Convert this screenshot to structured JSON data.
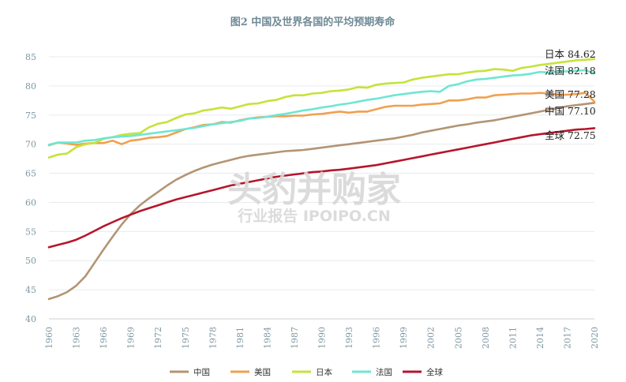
{
  "chart_data": {
    "type": "line",
    "title": "图2 中国及世界各国的平均预期寿命",
    "xlabel": "",
    "ylabel": "",
    "x": [
      1960,
      1961,
      1962,
      1963,
      1964,
      1965,
      1966,
      1967,
      1968,
      1969,
      1970,
      1971,
      1972,
      1973,
      1974,
      1975,
      1976,
      1977,
      1978,
      1979,
      1980,
      1981,
      1982,
      1983,
      1984,
      1985,
      1986,
      1987,
      1988,
      1989,
      1990,
      1991,
      1992,
      1993,
      1994,
      1995,
      1996,
      1997,
      1998,
      1999,
      2000,
      2001,
      2002,
      2003,
      2004,
      2005,
      2006,
      2007,
      2008,
      2009,
      2010,
      2011,
      2012,
      2013,
      2014,
      2015,
      2016,
      2017,
      2018,
      2019,
      2020
    ],
    "x_ticks": [
      "1960",
      "1963",
      "1966",
      "1969",
      "1972",
      "1975",
      "1978",
      "1981",
      "1984",
      "1987",
      "1990",
      "1993",
      "1996",
      "1999",
      "2002",
      "2005",
      "2008",
      "2011",
      "2014",
      "2017",
      "2020"
    ],
    "y_ticks": [
      "40",
      "45",
      "50",
      "55",
      "60",
      "65",
      "70",
      "75",
      "80",
      "85"
    ],
    "ylim": [
      40,
      85
    ],
    "xlim": [
      1960,
      2020
    ],
    "grid": "horizontal",
    "legend_position": "bottom",
    "series": [
      {
        "name": "中国",
        "color": "#b39474",
        "end_label": "中国 77.10",
        "values": [
          43.4,
          43.9,
          44.6,
          45.7,
          47.3,
          49.6,
          51.9,
          54.1,
          56.2,
          58.0,
          59.5,
          60.7,
          61.8,
          62.9,
          63.9,
          64.7,
          65.4,
          66.0,
          66.5,
          66.9,
          67.3,
          67.7,
          68.0,
          68.2,
          68.4,
          68.6,
          68.8,
          68.9,
          69.0,
          69.2,
          69.4,
          69.6,
          69.8,
          70.0,
          70.2,
          70.4,
          70.6,
          70.8,
          71.0,
          71.3,
          71.6,
          72.0,
          72.3,
          72.6,
          72.9,
          73.2,
          73.4,
          73.7,
          73.9,
          74.1,
          74.4,
          74.7,
          75.0,
          75.3,
          75.6,
          75.9,
          76.2,
          76.5,
          76.7,
          76.9,
          77.1
        ]
      },
      {
        "name": "美国",
        "color": "#f0a050",
        "end_label": "美国 77.28",
        "values": [
          69.8,
          70.3,
          70.1,
          69.9,
          70.1,
          70.2,
          70.2,
          70.6,
          70.0,
          70.6,
          70.8,
          71.1,
          71.2,
          71.4,
          72.0,
          72.6,
          72.9,
          73.3,
          73.4,
          73.8,
          73.7,
          74.1,
          74.4,
          74.6,
          74.7,
          74.8,
          74.8,
          74.9,
          74.9,
          75.1,
          75.2,
          75.4,
          75.6,
          75.4,
          75.6,
          75.6,
          76.0,
          76.4,
          76.6,
          76.6,
          76.6,
          76.8,
          76.9,
          77.0,
          77.5,
          77.5,
          77.7,
          78.0,
          78.0,
          78.4,
          78.5,
          78.6,
          78.7,
          78.7,
          78.8,
          78.7,
          78.5,
          78.5,
          78.6,
          78.8,
          77.3
        ]
      },
      {
        "name": "日本",
        "color": "#c5e33a",
        "end_label": "日本 84.62",
        "values": [
          67.7,
          68.2,
          68.4,
          69.5,
          70.0,
          70.2,
          70.9,
          71.2,
          71.6,
          71.8,
          71.9,
          72.9,
          73.5,
          73.8,
          74.5,
          75.1,
          75.3,
          75.8,
          76.0,
          76.3,
          76.1,
          76.5,
          76.9,
          77.0,
          77.4,
          77.6,
          78.1,
          78.4,
          78.4,
          78.7,
          78.8,
          79.1,
          79.2,
          79.4,
          79.8,
          79.7,
          80.2,
          80.4,
          80.5,
          80.6,
          81.1,
          81.4,
          81.6,
          81.8,
          82.0,
          82.0,
          82.3,
          82.5,
          82.6,
          82.9,
          82.8,
          82.6,
          83.1,
          83.3,
          83.6,
          83.8,
          84.0,
          84.2,
          84.4,
          84.5,
          84.62
        ]
      },
      {
        "name": "法国",
        "color": "#6fe6d2",
        "end_label": "法国 82.18",
        "values": [
          69.9,
          70.3,
          70.3,
          70.3,
          70.6,
          70.7,
          71.0,
          71.2,
          71.3,
          71.4,
          71.6,
          71.8,
          72.0,
          72.2,
          72.4,
          72.6,
          72.8,
          73.1,
          73.4,
          73.6,
          73.8,
          74.0,
          74.4,
          74.5,
          74.7,
          75.0,
          75.2,
          75.5,
          75.8,
          76.0,
          76.3,
          76.5,
          76.8,
          77.0,
          77.3,
          77.6,
          77.8,
          78.1,
          78.4,
          78.6,
          78.8,
          79.0,
          79.1,
          79.0,
          80.0,
          80.3,
          80.8,
          81.1,
          81.2,
          81.4,
          81.6,
          81.8,
          81.9,
          82.1,
          82.4,
          82.3,
          82.5,
          82.5,
          82.6,
          82.7,
          82.18
        ]
      },
      {
        "name": "全球",
        "color": "#b5162c",
        "end_label": "全球 72.75",
        "values": [
          52.3,
          52.7,
          53.1,
          53.6,
          54.3,
          55.1,
          55.9,
          56.6,
          57.3,
          57.9,
          58.5,
          59.0,
          59.5,
          60.0,
          60.5,
          60.9,
          61.3,
          61.7,
          62.1,
          62.5,
          62.9,
          63.2,
          63.5,
          63.8,
          64.1,
          64.4,
          64.6,
          64.8,
          65.0,
          65.2,
          65.3,
          65.5,
          65.6,
          65.8,
          66.0,
          66.2,
          66.4,
          66.7,
          67.0,
          67.3,
          67.6,
          67.9,
          68.2,
          68.5,
          68.8,
          69.1,
          69.4,
          69.7,
          70.0,
          70.3,
          70.6,
          70.9,
          71.2,
          71.5,
          71.7,
          71.9,
          72.1,
          72.3,
          72.5,
          72.6,
          72.75
        ]
      }
    ]
  },
  "watermark": {
    "line1": "头豹并购家",
    "line2": "行业报告 IPOIPO.CN"
  }
}
